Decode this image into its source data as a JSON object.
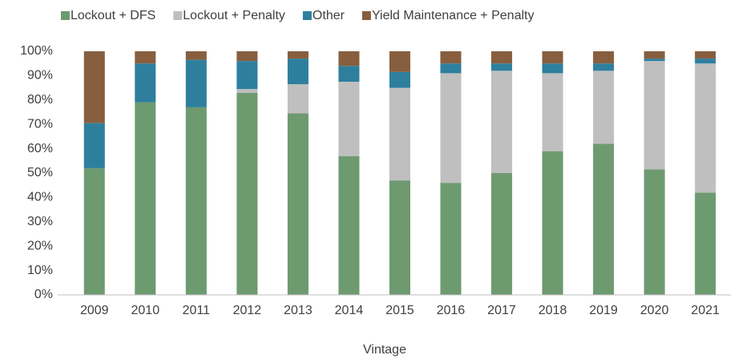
{
  "chart_data": {
    "type": "stacked_bar",
    "x_label": "Vintage",
    "categories": [
      "2009",
      "2010",
      "2011",
      "2012",
      "2013",
      "2014",
      "2015",
      "2016",
      "2017",
      "2018",
      "2019",
      "2020",
      "2021"
    ],
    "series": [
      {
        "name": "Lockout + DFS",
        "color": "#6e9a70",
        "values": [
          52,
          79,
          77,
          83,
          74.5,
          57,
          47,
          46,
          50,
          59,
          62,
          51.5,
          42
        ]
      },
      {
        "name": "Lockout + Penalty",
        "color": "#bfbfbf",
        "values": [
          0,
          0,
          0,
          1.5,
          12,
          30.5,
          38,
          45,
          42,
          32,
          30,
          44.5,
          53
        ]
      },
      {
        "name": "Other",
        "color": "#2e7f9e",
        "values": [
          18.5,
          16,
          19.5,
          11.5,
          10.5,
          6.5,
          6.5,
          4,
          3,
          4,
          3,
          1,
          2
        ]
      },
      {
        "name": "Yield Maintenance + Penalty",
        "color": "#875f3f",
        "values": [
          29.5,
          5,
          3.5,
          4,
          3,
          6,
          8.5,
          5,
          5,
          5,
          5,
          3,
          3
        ]
      }
    ],
    "ylim": [
      0,
      100
    ],
    "yticks": [
      {
        "value": 0,
        "label": "0%"
      },
      {
        "value": 10,
        "label": "10%"
      },
      {
        "value": 20,
        "label": "20%"
      },
      {
        "value": 30,
        "label": "30%"
      },
      {
        "value": 40,
        "label": "40%"
      },
      {
        "value": 50,
        "label": "50%"
      },
      {
        "value": 60,
        "label": "60%"
      },
      {
        "value": 70,
        "label": "70%"
      },
      {
        "value": 80,
        "label": "80%"
      },
      {
        "value": 90,
        "label": "90%"
      },
      {
        "value": 100,
        "label": "100%"
      }
    ],
    "grid": false,
    "legend": "top"
  }
}
